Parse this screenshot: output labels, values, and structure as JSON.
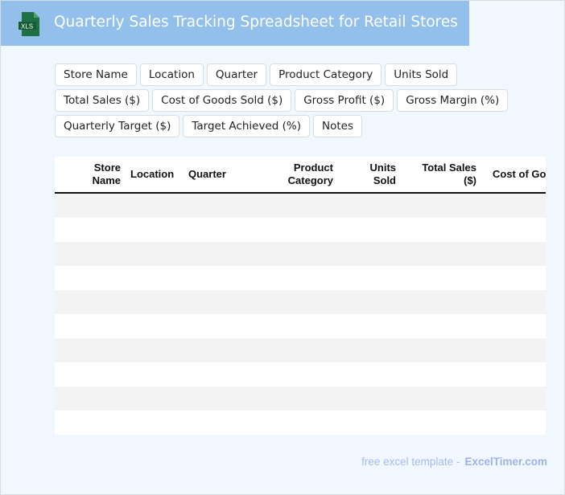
{
  "header": {
    "title": "Quarterly Sales Tracking Spreadsheet for Retail Stores",
    "logo_text": "XLS",
    "logo_color": "#1e7145"
  },
  "tags": [
    "Store Name",
    "Location",
    "Quarter",
    "Product Category",
    "Units Sold",
    "Total Sales ($)",
    "Cost of Goods Sold ($)",
    "Gross Profit ($)",
    "Gross Margin (%)",
    "Quarterly Target ($)",
    "Target Achieved (%)",
    "Notes"
  ],
  "table": {
    "columns": [
      "Store Name",
      "Location",
      "Quarter",
      "Product Category",
      "Units Sold",
      "Total Sales ($)",
      "Cost of Go"
    ],
    "row_count": 10
  },
  "footer": {
    "text": "free excel template -",
    "brand": "ExcelTimer.com"
  }
}
